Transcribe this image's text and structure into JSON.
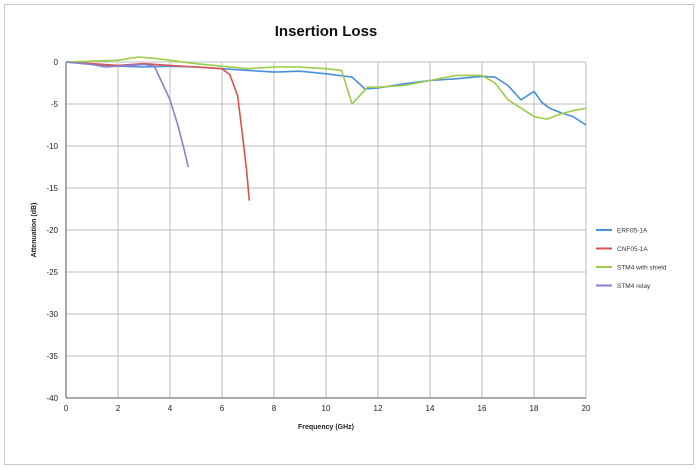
{
  "chart_data": {
    "type": "line",
    "title": "Insertion Loss",
    "xlabel": "Frequency (GHz)",
    "ylabel": "Attenuation (dB)",
    "xlim": [
      0,
      20
    ],
    "ylim": [
      -40,
      0
    ],
    "xticks": [
      0,
      2,
      4,
      6,
      8,
      10,
      12,
      14,
      16,
      18,
      20
    ],
    "yticks": [
      0,
      -5,
      -10,
      -15,
      -20,
      -25,
      -30,
      -35,
      -40
    ],
    "grid": true,
    "legend": "right",
    "series": [
      {
        "name": "ERF05-1A",
        "color": "#4a90d9",
        "points": [
          [
            0,
            0
          ],
          [
            1,
            -0.3
          ],
          [
            2,
            -0.5
          ],
          [
            3,
            -0.6
          ],
          [
            4,
            -0.5
          ],
          [
            5,
            -0.6
          ],
          [
            6,
            -0.8
          ],
          [
            7,
            -1.0
          ],
          [
            8,
            -1.2
          ],
          [
            9,
            -1.1
          ],
          [
            10,
            -1.4
          ],
          [
            11,
            -1.8
          ],
          [
            11.5,
            -3.2
          ],
          [
            12,
            -3.1
          ],
          [
            13,
            -2.6
          ],
          [
            14,
            -2.2
          ],
          [
            15,
            -2.0
          ],
          [
            16,
            -1.7
          ],
          [
            16.5,
            -1.8
          ],
          [
            17,
            -2.8
          ],
          [
            17.5,
            -4.5
          ],
          [
            18,
            -3.5
          ],
          [
            18.3,
            -4.8
          ],
          [
            18.6,
            -5.5
          ],
          [
            19,
            -6.0
          ],
          [
            19.5,
            -6.5
          ],
          [
            20,
            -7.5
          ]
        ]
      },
      {
        "name": "CNF05-1A",
        "color": "#d9534f",
        "points": [
          [
            0,
            0
          ],
          [
            1,
            -0.2
          ],
          [
            2,
            -0.4
          ],
          [
            3,
            -0.2
          ],
          [
            4,
            -0.4
          ],
          [
            5,
            -0.6
          ],
          [
            6,
            -0.8
          ],
          [
            6.3,
            -1.5
          ],
          [
            6.6,
            -4
          ],
          [
            6.8,
            -9
          ],
          [
            6.95,
            -13
          ],
          [
            7.05,
            -16.5
          ]
        ]
      },
      {
        "name": "STM4 with shield",
        "color": "#9ccc4a",
        "points": [
          [
            0,
            0
          ],
          [
            1,
            0.1
          ],
          [
            2,
            0.2
          ],
          [
            2.8,
            0.6
          ],
          [
            3.5,
            0.4
          ],
          [
            4,
            0.2
          ],
          [
            5,
            -0.2
          ],
          [
            6,
            -0.5
          ],
          [
            7,
            -0.8
          ],
          [
            8,
            -0.6
          ],
          [
            9,
            -0.6
          ],
          [
            10,
            -0.8
          ],
          [
            10.6,
            -1.0
          ],
          [
            11,
            -5.0
          ],
          [
            11.3,
            -4.0
          ],
          [
            11.6,
            -3.0
          ],
          [
            12,
            -3.0
          ],
          [
            13,
            -2.8
          ],
          [
            14,
            -2.2
          ],
          [
            15,
            -1.6
          ],
          [
            16,
            -1.6
          ],
          [
            16.5,
            -2.5
          ],
          [
            17,
            -4.5
          ],
          [
            17.5,
            -5.5
          ],
          [
            18,
            -6.5
          ],
          [
            18.5,
            -6.8
          ],
          [
            19,
            -6.2
          ],
          [
            19.5,
            -5.8
          ],
          [
            20,
            -5.5
          ]
        ]
      },
      {
        "name": "STM4 relay",
        "color": "#8a7fd0",
        "points": [
          [
            0,
            0
          ],
          [
            1,
            -0.3
          ],
          [
            1.5,
            -0.6
          ],
          [
            2,
            -0.5
          ],
          [
            3,
            -0.3
          ],
          [
            3.4,
            -0.5
          ],
          [
            3.7,
            -2.5
          ],
          [
            4,
            -4.5
          ],
          [
            4.3,
            -7.5
          ],
          [
            4.55,
            -10.5
          ],
          [
            4.7,
            -12.5
          ]
        ]
      }
    ]
  }
}
